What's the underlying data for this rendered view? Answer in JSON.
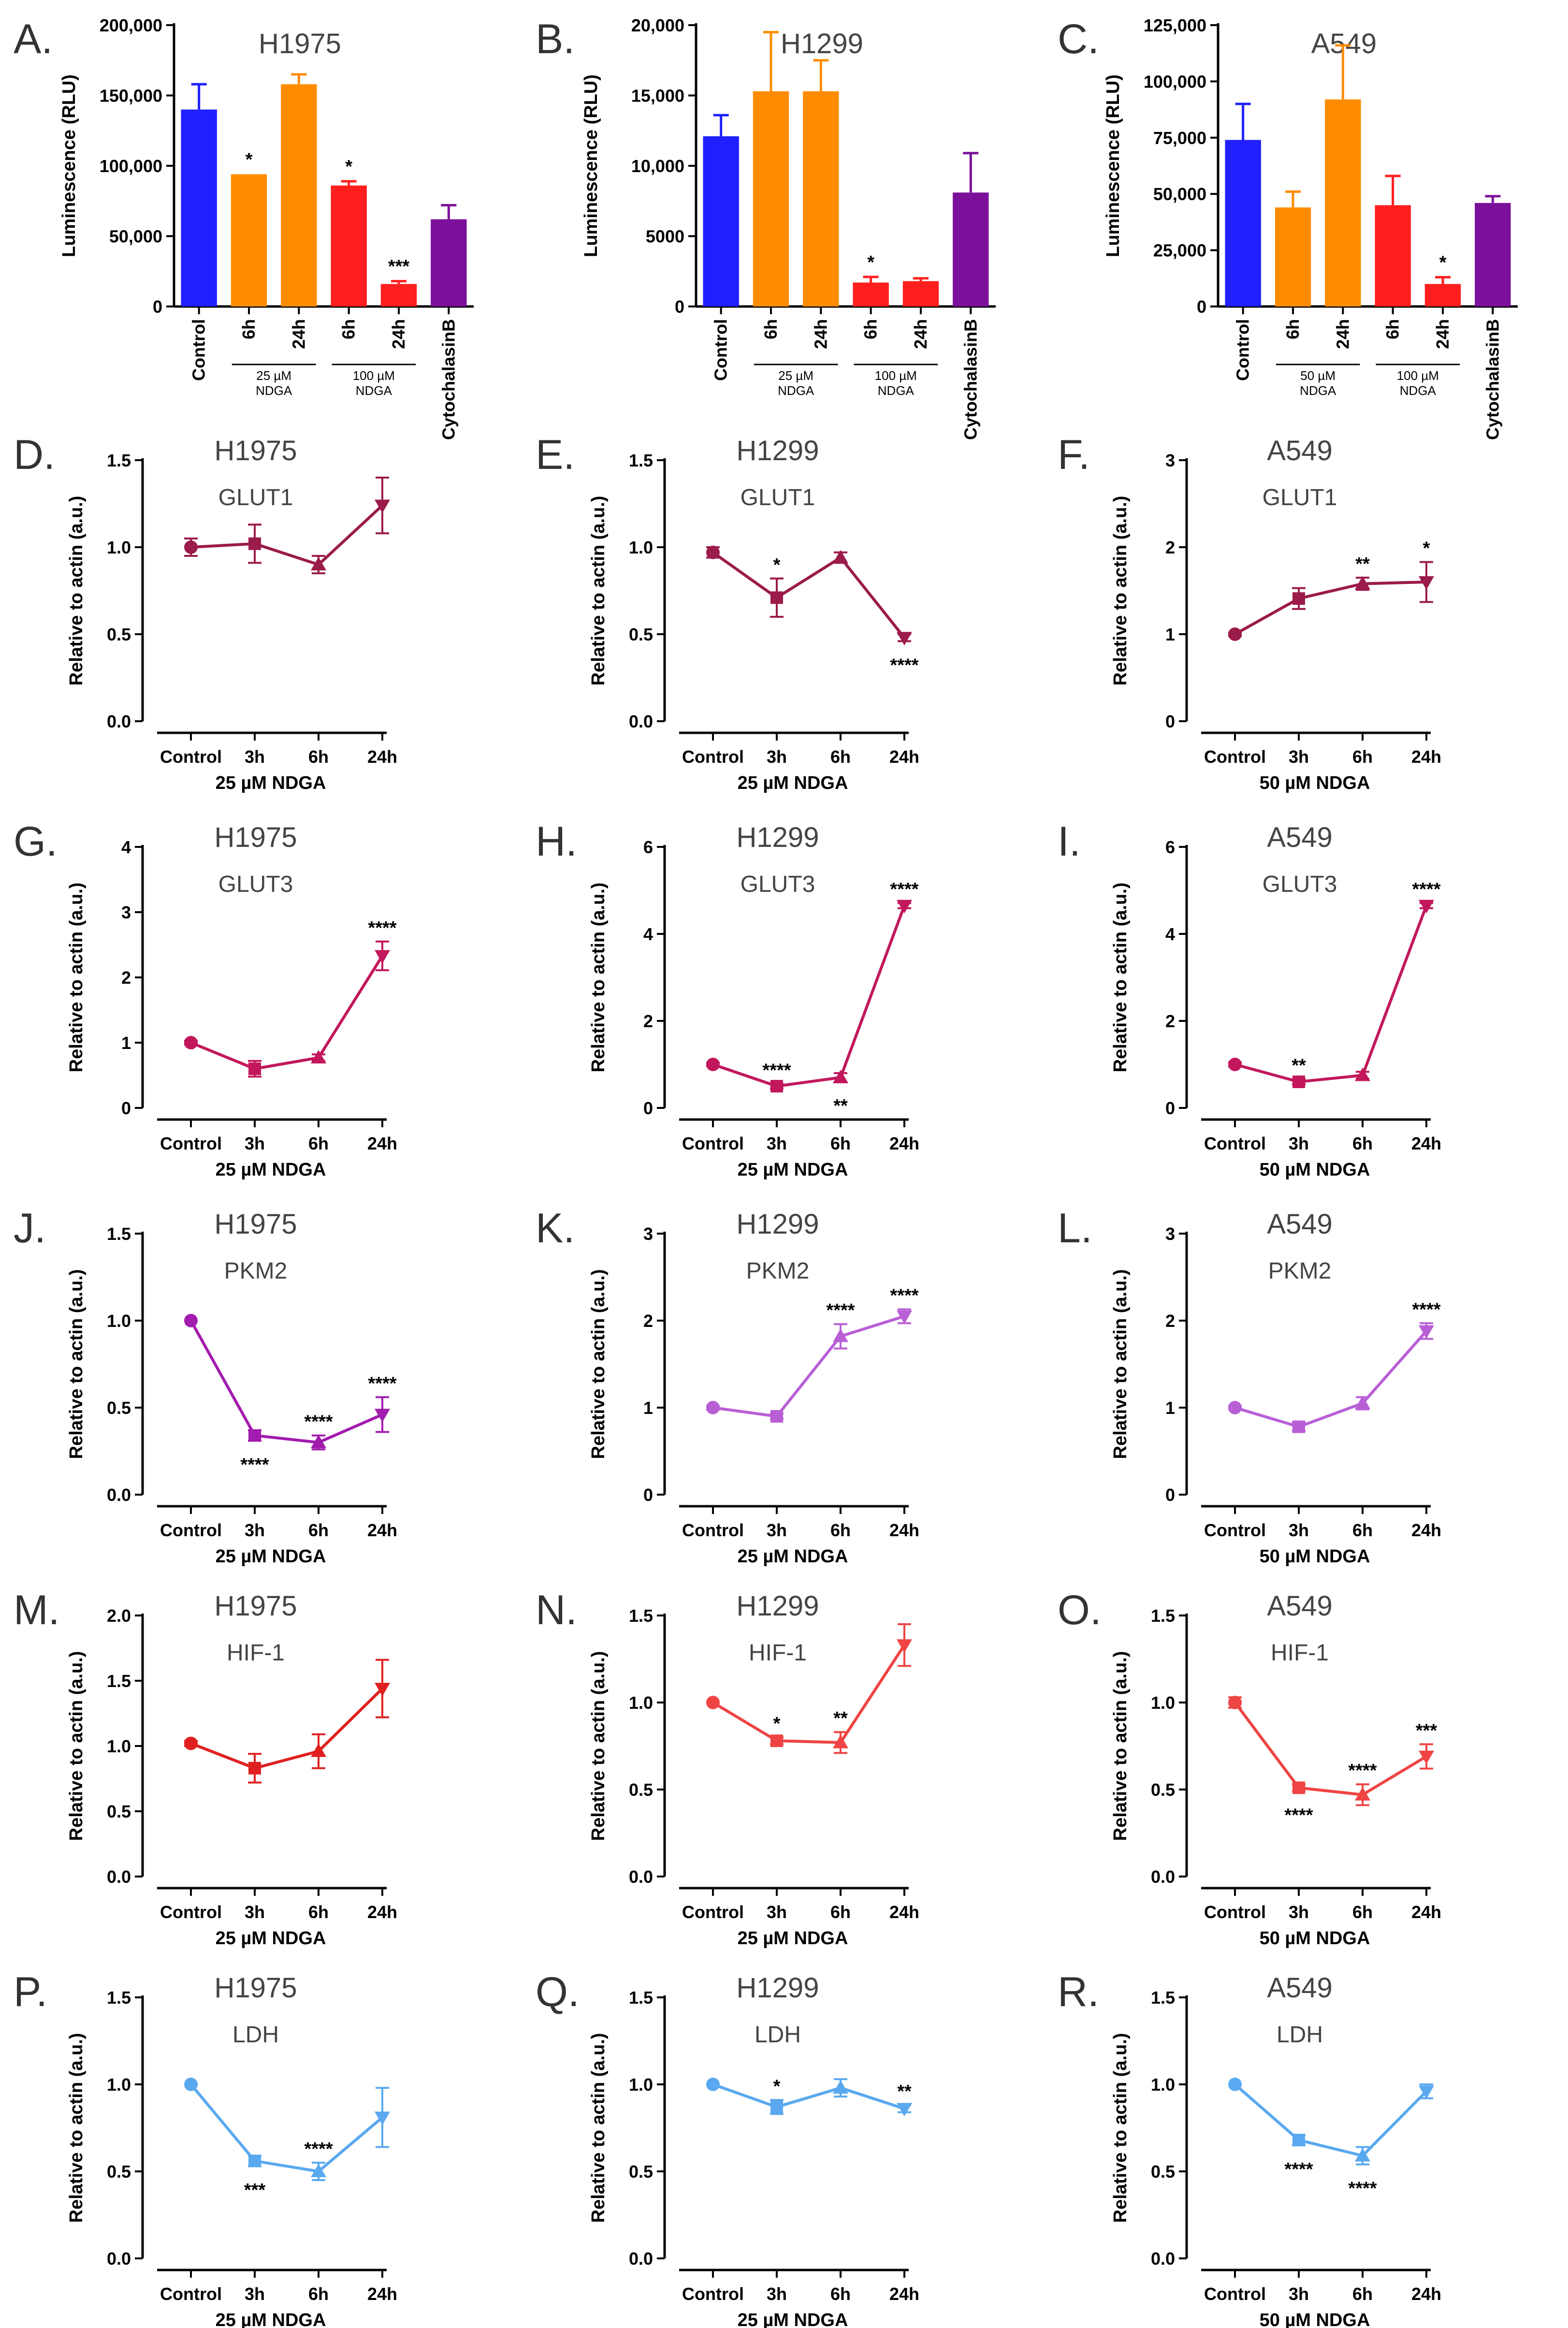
{
  "chart_data": [
    {
      "id": "A",
      "type": "bar",
      "panel_label": "A.",
      "title": "H1975",
      "ylabel": "Luminescence (RLU)",
      "ylim": [
        0,
        200000
      ],
      "yticks": [
        "0",
        "50,000",
        "100,000",
        "150,000",
        "200,000"
      ],
      "categories": [
        "Control",
        "6h",
        "24h",
        "6h",
        "24h",
        "CytochalasinB"
      ],
      "values": [
        140000,
        94000,
        158000,
        86000,
        16000,
        62000
      ],
      "errors": [
        18000,
        0,
        7000,
        3000,
        2000,
        10000
      ],
      "colors": [
        "#1f1fff",
        "#ff8c00",
        "#ff8c00",
        "#ff1f1f",
        "#ff1f1f",
        "#7b119a"
      ],
      "annotations": [
        "",
        "*",
        "",
        "*",
        "***",
        ""
      ],
      "groups": [
        {
          "label": "25 µM\nNDGA",
          "from": 1,
          "to": 2
        },
        {
          "label": "100 µM\nNDGA",
          "from": 3,
          "to": 4
        }
      ]
    },
    {
      "id": "B",
      "type": "bar",
      "panel_label": "B.",
      "title": "H1299",
      "ylabel": "Luminescence (RLU)",
      "ylim": [
        0,
        20000
      ],
      "yticks": [
        "0",
        "5000",
        "10,000",
        "15,000",
        "20,000"
      ],
      "categories": [
        "Control",
        "6h",
        "24h",
        "6h",
        "24h",
        "CytochalasinB"
      ],
      "values": [
        12100,
        15300,
        15300,
        1700,
        1800,
        8100
      ],
      "errors": [
        1500,
        4200,
        2200,
        400,
        200,
        2800
      ],
      "colors": [
        "#1f1fff",
        "#ff8c00",
        "#ff8c00",
        "#ff1f1f",
        "#ff1f1f",
        "#7b119a"
      ],
      "annotations": [
        "",
        "",
        "",
        "*",
        "",
        ""
      ],
      "groups": [
        {
          "label": "25 µM\nNDGA",
          "from": 1,
          "to": 2
        },
        {
          "label": "100 µM\nNDGA",
          "from": 3,
          "to": 4
        }
      ]
    },
    {
      "id": "C",
      "type": "bar",
      "panel_label": "C.",
      "title": "A549",
      "ylabel": "Luminescence (RLU)",
      "ylim": [
        0,
        125000
      ],
      "yticks": [
        "0",
        "25,000",
        "50,000",
        "75,000",
        "100,000",
        "125,000"
      ],
      "categories": [
        "Control",
        "6h",
        "24h",
        "6h",
        "24h",
        "CytochalasinB"
      ],
      "values": [
        74000,
        44000,
        92000,
        45000,
        10000,
        46000
      ],
      "errors": [
        16000,
        7000,
        24000,
        13000,
        3000,
        3000
      ],
      "colors": [
        "#1f1fff",
        "#ff8c00",
        "#ff8c00",
        "#ff1f1f",
        "#ff1f1f",
        "#7b119a"
      ],
      "annotations": [
        "",
        "",
        "",
        "",
        "*",
        ""
      ],
      "groups": [
        {
          "label": "50 µM\nNDGA",
          "from": 1,
          "to": 2
        },
        {
          "label": "100 µM\nNDGA",
          "from": 3,
          "to": 4
        }
      ]
    },
    {
      "id": "D",
      "type": "line",
      "panel_label": "D.",
      "title": "H1975",
      "gene": "GLUT1",
      "ylabel": "Relative to actin (a.u.)",
      "xlabel": "25 µM NDGA",
      "categories": [
        "Control",
        "3h",
        "6h",
        "24h"
      ],
      "ylim": [
        0,
        1.5
      ],
      "yticks": [
        "0.0",
        "0.5",
        "1.0",
        "1.5"
      ],
      "values": [
        1.0,
        1.02,
        0.9,
        1.24
      ],
      "errors": [
        0.05,
        0.11,
        0.05,
        0.16
      ],
      "color": "#9b1b4a",
      "markers": [
        "circle",
        "square",
        "triangle-up",
        "triangle-down"
      ],
      "annotations": [
        "",
        "",
        "",
        ""
      ],
      "annotation_pos": [
        "above",
        "above",
        "above",
        "above"
      ]
    },
    {
      "id": "E",
      "type": "line",
      "panel_label": "E.",
      "title": "H1299",
      "gene": "GLUT1",
      "ylabel": "Relative to actin (a.u.)",
      "xlabel": "25 µM NDGA",
      "categories": [
        "Control",
        "3h",
        "6h",
        "24h"
      ],
      "ylim": [
        0,
        1.5
      ],
      "yticks": [
        "0.0",
        "0.5",
        "1.0",
        "1.5"
      ],
      "values": [
        0.97,
        0.71,
        0.94,
        0.48
      ],
      "errors": [
        0.03,
        0.11,
        0.03,
        0.02
      ],
      "color": "#9b1b4a",
      "markers": [
        "circle",
        "square",
        "triangle-up",
        "triangle-down"
      ],
      "annotations": [
        "",
        "*",
        "",
        "****"
      ],
      "annotation_pos": [
        "above",
        "above",
        "above",
        "below"
      ]
    },
    {
      "id": "F",
      "type": "line",
      "panel_label": "F.",
      "title": "A549",
      "gene": "GLUT1",
      "ylabel": "Relative to actin (a.u.)",
      "xlabel": "50 µM NDGA",
      "categories": [
        "Control",
        "3h",
        "6h",
        "24h"
      ],
      "ylim": [
        0,
        3
      ],
      "yticks": [
        "0",
        "1",
        "2",
        "3"
      ],
      "values": [
        1.0,
        1.41,
        1.58,
        1.6
      ],
      "errors": [
        0.02,
        0.12,
        0.07,
        0.23
      ],
      "color": "#9b1b4a",
      "markers": [
        "circle",
        "square",
        "triangle-up",
        "triangle-down"
      ],
      "annotations": [
        "",
        "",
        "**",
        "*"
      ],
      "annotation_pos": [
        "above",
        "above",
        "above",
        "above"
      ]
    },
    {
      "id": "G",
      "type": "line",
      "panel_label": "G.",
      "title": "H1975",
      "gene": "GLUT3",
      "ylabel": "Relative to actin (a.u.)",
      "xlabel": "25 µM NDGA",
      "categories": [
        "Control",
        "3h",
        "6h",
        "24h"
      ],
      "ylim": [
        0,
        4
      ],
      "yticks": [
        "0",
        "1",
        "2",
        "3",
        "4"
      ],
      "values": [
        1.0,
        0.6,
        0.77,
        2.33
      ],
      "errors": [
        0.03,
        0.12,
        0.05,
        0.22
      ],
      "color": "#c2185b",
      "markers": [
        "circle",
        "square",
        "triangle-up",
        "triangle-down"
      ],
      "annotations": [
        "",
        "",
        "",
        "****"
      ],
      "annotation_pos": [
        "above",
        "above",
        "above",
        "above"
      ]
    },
    {
      "id": "H",
      "type": "line",
      "panel_label": "H.",
      "title": "H1299",
      "gene": "GLUT3",
      "ylabel": "Relative to actin (a.u.)",
      "xlabel": "25 µM NDGA",
      "categories": [
        "Control",
        "3h",
        "6h",
        "24h"
      ],
      "ylim": [
        0,
        6
      ],
      "yticks": [
        "0",
        "2",
        "4",
        "6"
      ],
      "values": [
        1.0,
        0.5,
        0.7,
        4.65
      ],
      "errors": [
        0.04,
        0.05,
        0.1,
        0.06
      ],
      "color": "#c2185b",
      "markers": [
        "circle",
        "square",
        "triangle-up",
        "triangle-down"
      ],
      "annotations": [
        "",
        "****",
        "**",
        "****"
      ],
      "annotation_pos": [
        "above",
        "above",
        "below",
        "above"
      ]
    },
    {
      "id": "I",
      "type": "line",
      "panel_label": "I.",
      "title": "A549",
      "gene": "GLUT3",
      "ylabel": "Relative to actin (a.u.)",
      "xlabel": "50 µM NDGA",
      "categories": [
        "Control",
        "3h",
        "6h",
        "24h"
      ],
      "ylim": [
        0,
        6
      ],
      "yticks": [
        "0",
        "2",
        "4",
        "6"
      ],
      "values": [
        1.0,
        0.6,
        0.75,
        4.65
      ],
      "errors": [
        0.05,
        0.06,
        0.08,
        0.06
      ],
      "color": "#c2185b",
      "markers": [
        "circle",
        "square",
        "triangle-up",
        "triangle-down"
      ],
      "annotations": [
        "",
        "**",
        "",
        "****"
      ],
      "annotation_pos": [
        "above",
        "above",
        "above",
        "above"
      ]
    },
    {
      "id": "J",
      "type": "line",
      "panel_label": "J.",
      "title": "H1975",
      "gene": "PKM2",
      "ylabel": "Relative to actin (a.u.)",
      "xlabel": "25 µM NDGA",
      "categories": [
        "Control",
        "3h",
        "6h",
        "24h"
      ],
      "ylim": [
        0,
        1.5
      ],
      "yticks": [
        "0.0",
        "0.5",
        "1.0",
        "1.5"
      ],
      "values": [
        1.0,
        0.34,
        0.3,
        0.46
      ],
      "errors": [
        0.01,
        0.03,
        0.04,
        0.1
      ],
      "color": "#a21caf",
      "markers": [
        "circle",
        "square",
        "triangle-up",
        "triangle-down"
      ],
      "annotations": [
        "",
        "****",
        "****",
        "****"
      ],
      "annotation_pos": [
        "above",
        "below",
        "above",
        "above"
      ]
    },
    {
      "id": "K",
      "type": "line",
      "panel_label": "K.",
      "title": "H1299",
      "gene": "PKM2",
      "ylabel": "Relative to actin (a.u.)",
      "xlabel": "25 µM NDGA",
      "categories": [
        "Control",
        "3h",
        "6h",
        "24h"
      ],
      "ylim": [
        0,
        3
      ],
      "yticks": [
        "0",
        "1",
        "2",
        "3"
      ],
      "values": [
        1.0,
        0.9,
        1.82,
        2.05
      ],
      "errors": [
        0.02,
        0.03,
        0.14,
        0.08
      ],
      "color": "#b85fd6",
      "markers": [
        "circle",
        "square",
        "triangle-up",
        "triangle-down"
      ],
      "annotations": [
        "",
        "",
        "****",
        "****"
      ],
      "annotation_pos": [
        "above",
        "above",
        "above",
        "above"
      ]
    },
    {
      "id": "L",
      "type": "line",
      "panel_label": "L.",
      "title": "A549",
      "gene": "PKM2",
      "ylabel": "Relative to actin (a.u.)",
      "xlabel": "50 µM NDGA",
      "categories": [
        "Control",
        "3h",
        "6h",
        "24h"
      ],
      "ylim": [
        0,
        3
      ],
      "yticks": [
        "0",
        "1",
        "2",
        "3"
      ],
      "values": [
        1.0,
        0.78,
        1.05,
        1.88
      ],
      "errors": [
        0.02,
        0.05,
        0.07,
        0.09
      ],
      "color": "#b85fd6",
      "markers": [
        "circle",
        "square",
        "triangle-up",
        "triangle-down"
      ],
      "annotations": [
        "",
        "",
        "",
        "****"
      ],
      "annotation_pos": [
        "above",
        "above",
        "above",
        "above"
      ]
    },
    {
      "id": "M",
      "type": "line",
      "panel_label": "M.",
      "title": "H1975",
      "gene": "HIF-1",
      "ylabel": "Relative to actin (a.u.)",
      "xlabel": "25 µM NDGA",
      "categories": [
        "Control",
        "3h",
        "6h",
        "24h"
      ],
      "ylim": [
        0,
        2.0
      ],
      "yticks": [
        "0.0",
        "0.5",
        "1.0",
        "1.5",
        "2.0"
      ],
      "values": [
        1.02,
        0.83,
        0.96,
        1.44
      ],
      "errors": [
        0.02,
        0.11,
        0.13,
        0.22
      ],
      "color": "#e02020",
      "markers": [
        "circle",
        "square",
        "triangle-up",
        "triangle-down"
      ],
      "annotations": [
        "",
        "",
        "",
        ""
      ],
      "annotation_pos": [
        "above",
        "above",
        "above",
        "above"
      ]
    },
    {
      "id": "N",
      "type": "line",
      "panel_label": "N.",
      "title": "H1299",
      "gene": "HIF-1",
      "ylabel": "Relative to actin (a.u.)",
      "xlabel": "25 µM NDGA",
      "categories": [
        "Control",
        "3h",
        "6h",
        "24h"
      ],
      "ylim": [
        0,
        1.5
      ],
      "yticks": [
        "0.0",
        "0.5",
        "1.0",
        "1.5"
      ],
      "values": [
        1.0,
        0.78,
        0.77,
        1.33
      ],
      "errors": [
        0.01,
        0.02,
        0.06,
        0.12
      ],
      "color": "#ef4444",
      "markers": [
        "circle",
        "square",
        "triangle-up",
        "triangle-down"
      ],
      "annotations": [
        "",
        "*",
        "**",
        ""
      ],
      "annotation_pos": [
        "above",
        "above",
        "above",
        "above"
      ]
    },
    {
      "id": "O",
      "type": "line",
      "panel_label": "O.",
      "title": "A549",
      "gene": "HIF-1",
      "ylabel": "Relative to actin (a.u.)",
      "xlabel": "50 µM NDGA",
      "categories": [
        "Control",
        "3h",
        "6h",
        "24h"
      ],
      "ylim": [
        0,
        1.5
      ],
      "yticks": [
        "0.0",
        "0.5",
        "1.0",
        "1.5"
      ],
      "values": [
        1.0,
        0.51,
        0.47,
        0.69
      ],
      "errors": [
        0.03,
        0.02,
        0.06,
        0.07
      ],
      "color": "#ef4444",
      "markers": [
        "circle",
        "square",
        "triangle-up",
        "triangle-down"
      ],
      "annotations": [
        "",
        "****",
        "****",
        "***"
      ],
      "annotation_pos": [
        "above",
        "below",
        "above",
        "above"
      ]
    },
    {
      "id": "P",
      "type": "line",
      "panel_label": "P.",
      "title": "H1975",
      "gene": "LDH",
      "ylabel": "Relative to actin (a.u.)",
      "xlabel": "25 µM NDGA",
      "categories": [
        "Control",
        "3h",
        "6h",
        "24h"
      ],
      "ylim": [
        0,
        1.5
      ],
      "yticks": [
        "0.0",
        "0.5",
        "1.0",
        "1.5"
      ],
      "values": [
        1.0,
        0.56,
        0.5,
        0.81
      ],
      "errors": [
        0.01,
        0.03,
        0.05,
        0.17
      ],
      "color": "#5aa9f0",
      "markers": [
        "circle",
        "square",
        "triangle-up",
        "triangle-down"
      ],
      "annotations": [
        "",
        "***",
        "****",
        ""
      ],
      "annotation_pos": [
        "above",
        "below",
        "above",
        "above"
      ]
    },
    {
      "id": "Q",
      "type": "line",
      "panel_label": "Q.",
      "title": "H1299",
      "gene": "LDH",
      "ylabel": "Relative to actin (a.u.)",
      "xlabel": "25 µM NDGA",
      "categories": [
        "Control",
        "3h",
        "6h",
        "24h"
      ],
      "ylim": [
        0,
        1.5
      ],
      "yticks": [
        "0.0",
        "0.5",
        "1.0",
        "1.5"
      ],
      "values": [
        1.0,
        0.87,
        0.98,
        0.86
      ],
      "errors": [
        0.01,
        0.04,
        0.05,
        0.02
      ],
      "color": "#5aa9f0",
      "markers": [
        "circle",
        "square",
        "triangle-up",
        "triangle-down"
      ],
      "annotations": [
        "",
        "*",
        "",
        "**"
      ],
      "annotation_pos": [
        "above",
        "above",
        "above",
        "above"
      ]
    },
    {
      "id": "R",
      "type": "line",
      "panel_label": "R.",
      "title": "A549",
      "gene": "LDH",
      "ylabel": "Relative to actin (a.u.)",
      "xlabel": "50 µM NDGA",
      "categories": [
        "Control",
        "3h",
        "6h",
        "24h"
      ],
      "ylim": [
        0,
        1.5
      ],
      "yticks": [
        "0.0",
        "0.5",
        "1.0",
        "1.5"
      ],
      "values": [
        1.0,
        0.68,
        0.59,
        0.96
      ],
      "errors": [
        0.01,
        0.03,
        0.05,
        0.04
      ],
      "color": "#5aa9f0",
      "markers": [
        "circle",
        "square",
        "triangle-up",
        "triangle-down"
      ],
      "annotations": [
        "",
        "****",
        "****",
        ""
      ],
      "annotation_pos": [
        "above",
        "below",
        "below",
        "above"
      ]
    }
  ]
}
